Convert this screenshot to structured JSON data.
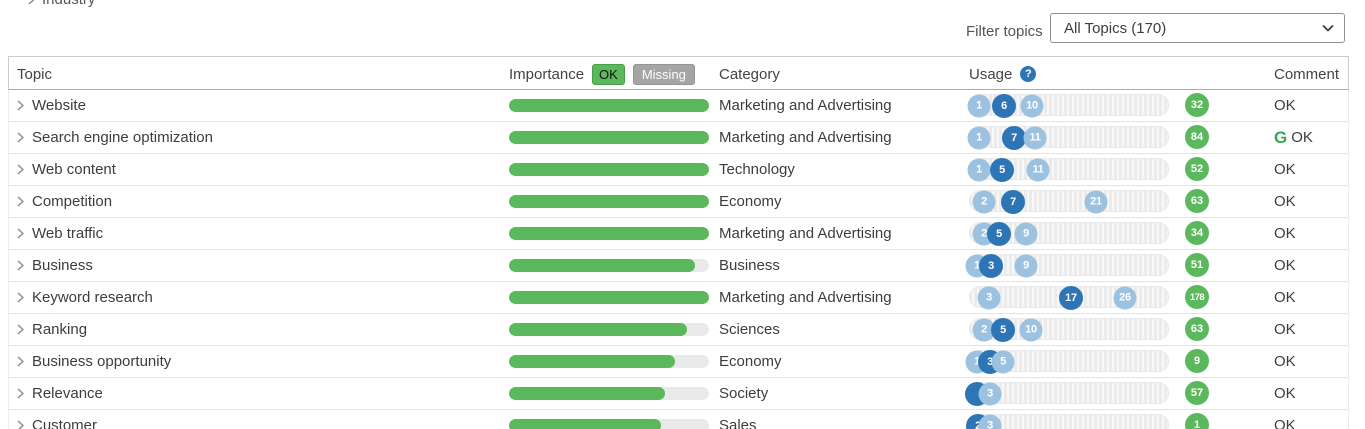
{
  "breadcrumb": {
    "label": "Industry"
  },
  "filter": {
    "label": "Filter topics",
    "value": "All Topics (170)"
  },
  "glyphs": {
    "google": "G",
    "help": "?"
  },
  "colors": {
    "green": "#5cb85c",
    "dark_blue": "#2e75b6",
    "light_blue": "#9cc2e0",
    "gray_badge": "#a5a5a5",
    "google_green": "#36a853"
  },
  "table": {
    "headers": {
      "topic": "Topic",
      "importance": "Importance",
      "importance_ok": "OK",
      "importance_missing": "Missing",
      "category": "Category",
      "usage": "Usage",
      "comment": "Comment"
    },
    "rows": [
      {
        "topic": "Website",
        "importance_pct": 100,
        "category": "Marketing and Advertising",
        "markers": [
          {
            "label": "1",
            "style": "light",
            "pos": 10
          },
          {
            "label": "6",
            "style": "dark",
            "pos": 35
          },
          {
            "label": "10",
            "style": "light",
            "pos": 63
          }
        ],
        "count": "32",
        "comment": "OK",
        "google_icon": false
      },
      {
        "topic": "Search engine optimization",
        "importance_pct": 100,
        "category": "Marketing and Advertising",
        "markers": [
          {
            "label": "1",
            "style": "light",
            "pos": 10
          },
          {
            "label": "7",
            "style": "dark",
            "pos": 45
          },
          {
            "label": "11",
            "style": "light",
            "pos": 66
          }
        ],
        "count": "84",
        "comment": "OK",
        "google_icon": true
      },
      {
        "topic": "Web content",
        "importance_pct": 100,
        "category": "Technology",
        "markers": [
          {
            "label": "1",
            "style": "light",
            "pos": 10
          },
          {
            "label": "5",
            "style": "dark",
            "pos": 33
          },
          {
            "label": "11",
            "style": "light",
            "pos": 69
          }
        ],
        "count": "52",
        "comment": "OK",
        "google_icon": false
      },
      {
        "topic": "Competition",
        "importance_pct": 100,
        "category": "Economy",
        "markers": [
          {
            "label": "2",
            "style": "light",
            "pos": 15
          },
          {
            "label": "7",
            "style": "dark",
            "pos": 44
          },
          {
            "label": "21",
            "style": "light",
            "pos": 127
          }
        ],
        "count": "63",
        "comment": "OK",
        "google_icon": false
      },
      {
        "topic": "Web traffic",
        "importance_pct": 100,
        "category": "Marketing and Advertising",
        "markers": [
          {
            "label": "2",
            "style": "light",
            "pos": 15
          },
          {
            "label": "5",
            "style": "dark",
            "pos": 30
          },
          {
            "label": "9",
            "style": "light",
            "pos": 57
          }
        ],
        "count": "34",
        "comment": "OK",
        "google_icon": false
      },
      {
        "topic": "Business",
        "importance_pct": 93,
        "category": "Business",
        "markers": [
          {
            "label": "1",
            "style": "light",
            "pos": 8
          },
          {
            "label": "3",
            "style": "dark",
            "pos": 22
          },
          {
            "label": "9",
            "style": "light",
            "pos": 57
          }
        ],
        "count": "51",
        "comment": "OK",
        "google_icon": false
      },
      {
        "topic": "Keyword research",
        "importance_pct": 100,
        "category": "Marketing and Advertising",
        "markers": [
          {
            "label": "3",
            "style": "light",
            "pos": 20
          },
          {
            "label": "17",
            "style": "dark",
            "pos": 102
          },
          {
            "label": "26",
            "style": "light",
            "pos": 156
          }
        ],
        "count": "178",
        "comment": "OK",
        "google_icon": false
      },
      {
        "topic": "Ranking",
        "importance_pct": 89,
        "category": "Sciences",
        "markers": [
          {
            "label": "2",
            "style": "light",
            "pos": 15
          },
          {
            "label": "5",
            "style": "dark",
            "pos": 34
          },
          {
            "label": "10",
            "style": "light",
            "pos": 62
          }
        ],
        "count": "63",
        "comment": "OK",
        "google_icon": false
      },
      {
        "topic": "Business opportunity",
        "importance_pct": 83,
        "category": "Economy",
        "markers": [
          {
            "label": "1",
            "style": "light",
            "pos": 8
          },
          {
            "label": "3",
            "style": "dark",
            "pos": 21
          },
          {
            "label": "5",
            "style": "light",
            "pos": 34
          }
        ],
        "count": "9",
        "comment": "OK",
        "google_icon": false
      },
      {
        "topic": "Relevance",
        "importance_pct": 78,
        "category": "Society",
        "markers": [
          {
            "label": "",
            "style": "dark",
            "pos": 8
          },
          {
            "label": "3",
            "style": "light",
            "pos": 21
          }
        ],
        "count": "57",
        "comment": "OK",
        "google_icon": false
      },
      {
        "topic": "Customer",
        "importance_pct": 76,
        "category": "Sales",
        "markers": [
          {
            "label": "2",
            "style": "dark",
            "pos": 9
          },
          {
            "label": "3",
            "style": "light",
            "pos": 21
          }
        ],
        "count": "1",
        "comment": "OK",
        "google_icon": false
      }
    ]
  }
}
